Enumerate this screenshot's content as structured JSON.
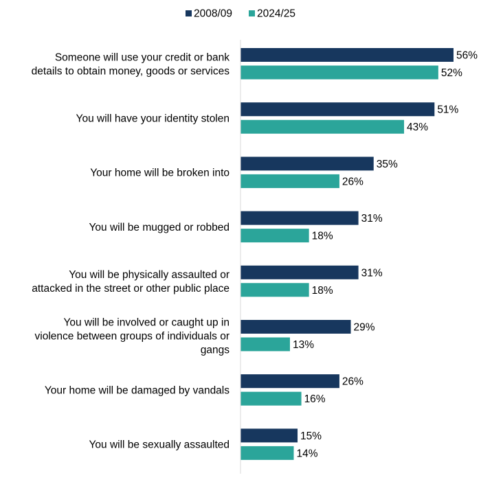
{
  "chart_data": {
    "type": "bar",
    "orientation": "horizontal",
    "title": "",
    "xlabel": "",
    "ylabel": "",
    "xlim": [
      0,
      56
    ],
    "legend": "top",
    "grid": false,
    "value_suffix": "%",
    "categories": [
      [
        "Someone will use your credit or bank",
        "details to obtain money, goods or services"
      ],
      [
        "You will have your identity stolen"
      ],
      [
        "Your home will be broken into"
      ],
      [
        "You will be mugged or robbed"
      ],
      [
        "You will be physically assaulted or",
        "attacked in the street or other public place"
      ],
      [
        "You will be involved or caught up in",
        "violence between groups of individuals or",
        "gangs"
      ],
      [
        "Your home will be damaged by vandals"
      ],
      [
        "You will be sexually assaulted"
      ]
    ],
    "series": [
      {
        "name": "2008/09",
        "color": "#17375e",
        "values": [
          56,
          51,
          35,
          31,
          31,
          29,
          26,
          15
        ]
      },
      {
        "name": "2024/25",
        "color": "#2ba59a",
        "values": [
          52,
          43,
          26,
          18,
          18,
          13,
          16,
          14
        ]
      }
    ],
    "axis_color": "#d9d9d9"
  }
}
